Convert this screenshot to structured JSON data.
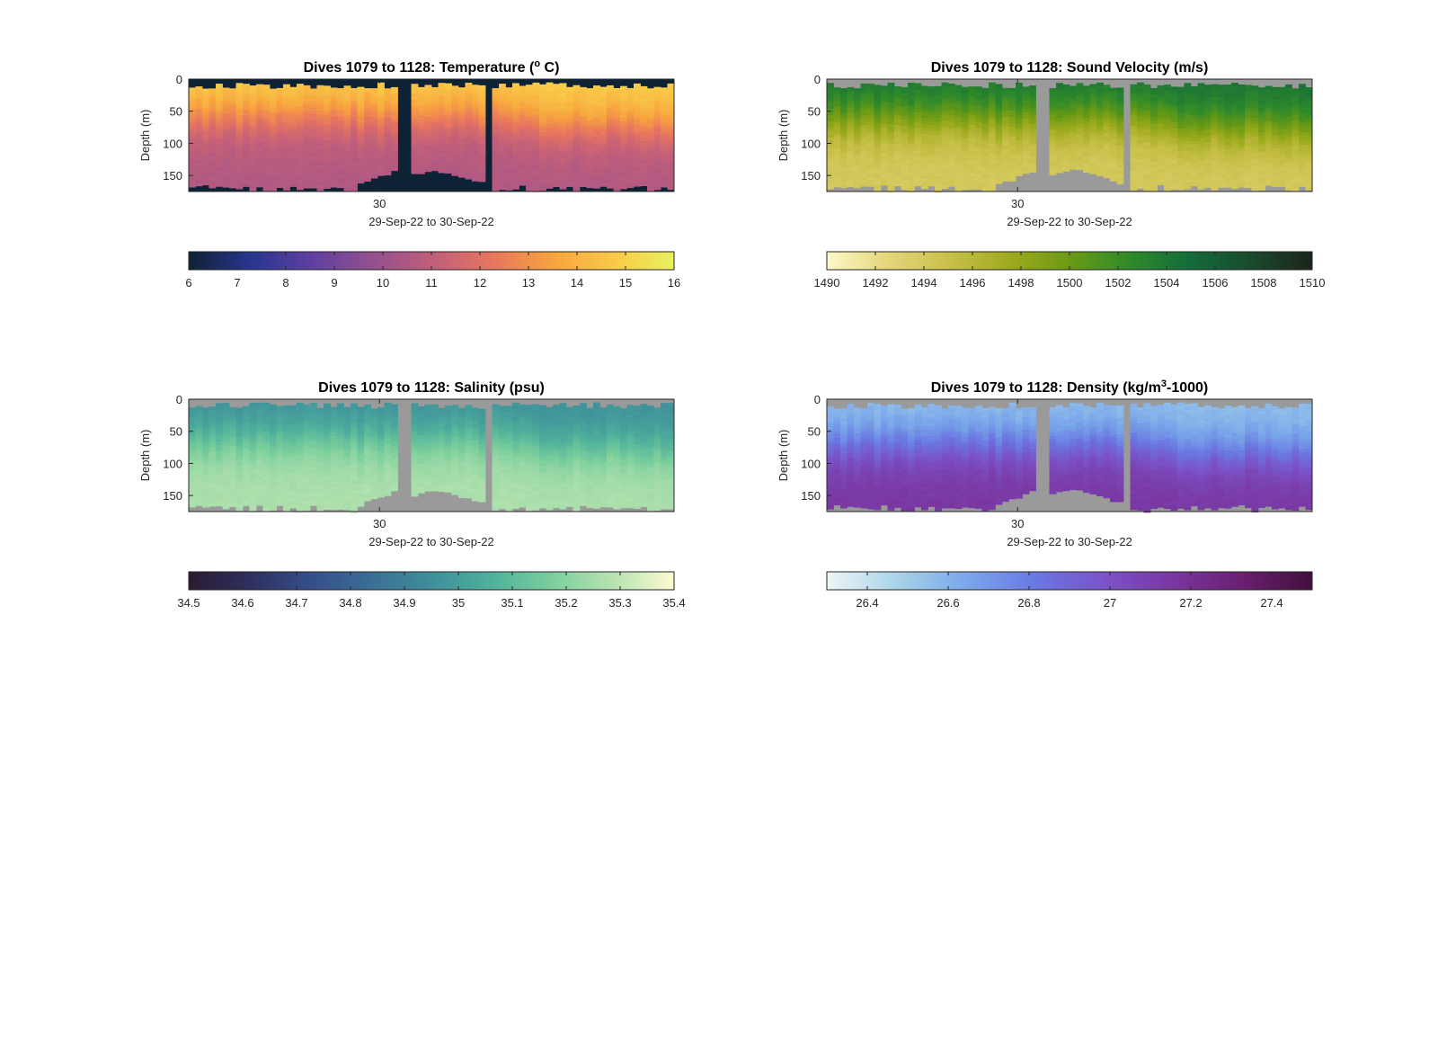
{
  "figure": {
    "panels": [
      {
        "id": "temperature",
        "title_prefix": "Dives 1079 to 1128: Temperature (",
        "title_sup": "o",
        "title_suffix": " C)",
        "ylabel": "Depth (m)",
        "xlabel": "29-Sep-22 to 30-Sep-22",
        "xtick": "30",
        "yticks": [
          "0",
          "50",
          "100",
          "150"
        ],
        "colorbar_ticks": [
          "6",
          "7",
          "8",
          "9",
          "10",
          "11",
          "12",
          "13",
          "14",
          "15",
          "16"
        ],
        "colormap": [
          "#0e2233",
          "#27358f",
          "#5d3fa0",
          "#91508f",
          "#c05e7b",
          "#e8755f",
          "#f7a33f",
          "#f9c947",
          "#e8f25e"
        ],
        "nodata_color": "#0d2235"
      },
      {
        "id": "sound_velocity",
        "title_prefix": "Dives 1079 to 1128: Sound Velocity (m/s)",
        "title_sup": "",
        "title_suffix": "",
        "ylabel": "Depth (m)",
        "xlabel": "29-Sep-22 to 30-Sep-22",
        "xtick": "30",
        "yticks": [
          "0",
          "50",
          "100",
          "150"
        ],
        "colorbar_ticks": [
          "1490",
          "1492",
          "1494",
          "1496",
          "1498",
          "1500",
          "1502",
          "1504",
          "1506",
          "1508",
          "1510"
        ],
        "colormap": [
          "#fdf8c9",
          "#e4d67a",
          "#c9c04a",
          "#9eab1d",
          "#6b9a15",
          "#2f8a2a",
          "#136b3a",
          "#1a4a2e",
          "#1c241b"
        ],
        "nodata_color": "#9a9a9a"
      },
      {
        "id": "salinity",
        "title_prefix": "Dives 1079 to 1128: Salinity (psu)",
        "title_sup": "",
        "title_suffix": "",
        "ylabel": "Depth (m)",
        "xlabel": "29-Sep-22 to 30-Sep-22",
        "xtick": "30",
        "yticks": [
          "0",
          "50",
          "100",
          "150"
        ],
        "colorbar_ticks": [
          "34.5",
          "34.6",
          "34.7",
          "34.8",
          "34.9",
          "35",
          "35.1",
          "35.2",
          "35.3",
          "35.4"
        ],
        "colormap": [
          "#2a1a30",
          "#2f2f5f",
          "#344e8a",
          "#3a6e96",
          "#3f8f9b",
          "#4fb19b",
          "#7ccf9c",
          "#b7e3b0",
          "#fcfbd0"
        ],
        "nodata_color": "#9a9a9a"
      },
      {
        "id": "density",
        "title_prefix": "Dives 1079 to 1128: Density (kg/m",
        "title_sup": "3",
        "title_suffix": "-1000)",
        "ylabel": "Depth (m)",
        "xlabel": "29-Sep-22 to 30-Sep-22",
        "xtick": "30",
        "yticks": [
          "0",
          "50",
          "100",
          "150"
        ],
        "colorbar_ticks": [
          "26.4",
          "26.6",
          "26.8",
          "27",
          "27.2",
          "27.4"
        ],
        "colormap": [
          "#eef6f6",
          "#a9d3e8",
          "#7aa8ea",
          "#6a78e2",
          "#7a53c8",
          "#7a36a0",
          "#6a1f70",
          "#42103c"
        ],
        "nodata_color": "#9a9a9a"
      }
    ]
  },
  "chart_data": [
    {
      "type": "heatmap",
      "title": "Dives 1079 to 1128: Temperature (° C)",
      "xlabel": "29-Sep-22 to 30-Sep-22",
      "ylabel": "Depth (m)",
      "ylim": [
        0,
        175
      ],
      "y_reversed": true,
      "colorbar": {
        "min": 6,
        "max": 16,
        "label": ""
      },
      "profile": {
        "surface_value": 15.0,
        "deep_value": 10.6,
        "transition_depth_m": 55
      }
    },
    {
      "type": "heatmap",
      "title": "Dives 1079 to 1128: Sound Velocity (m/s)",
      "xlabel": "29-Sep-22 to 30-Sep-22",
      "ylabel": "Depth (m)",
      "ylim": [
        0,
        175
      ],
      "y_reversed": true,
      "colorbar": {
        "min": 1490,
        "max": 1510,
        "label": ""
      },
      "profile": {
        "surface_value": 1504.5,
        "deep_value": 1494.0,
        "transition_depth_m": 60
      }
    },
    {
      "type": "heatmap",
      "title": "Dives 1079 to 1128: Salinity (psu)",
      "xlabel": "29-Sep-22 to 30-Sep-22",
      "ylabel": "Depth (m)",
      "ylim": [
        0,
        175
      ],
      "y_reversed": true,
      "colorbar": {
        "min": 34.5,
        "max": 35.4,
        "label": ""
      },
      "profile": {
        "surface_value": 34.95,
        "deep_value": 35.27,
        "transition_depth_m": 60
      }
    },
    {
      "type": "heatmap",
      "title": "Dives 1079 to 1128: Density (kg/m³-1000)",
      "xlabel": "29-Sep-22 to 30-Sep-22",
      "ylabel": "Depth (m)",
      "ylim": [
        0,
        175
      ],
      "y_reversed": true,
      "colorbar": {
        "min": 26.3,
        "max": 27.5,
        "label": ""
      },
      "profile": {
        "surface_value": 26.55,
        "deep_value": 27.15,
        "transition_depth_m": 70
      }
    }
  ]
}
